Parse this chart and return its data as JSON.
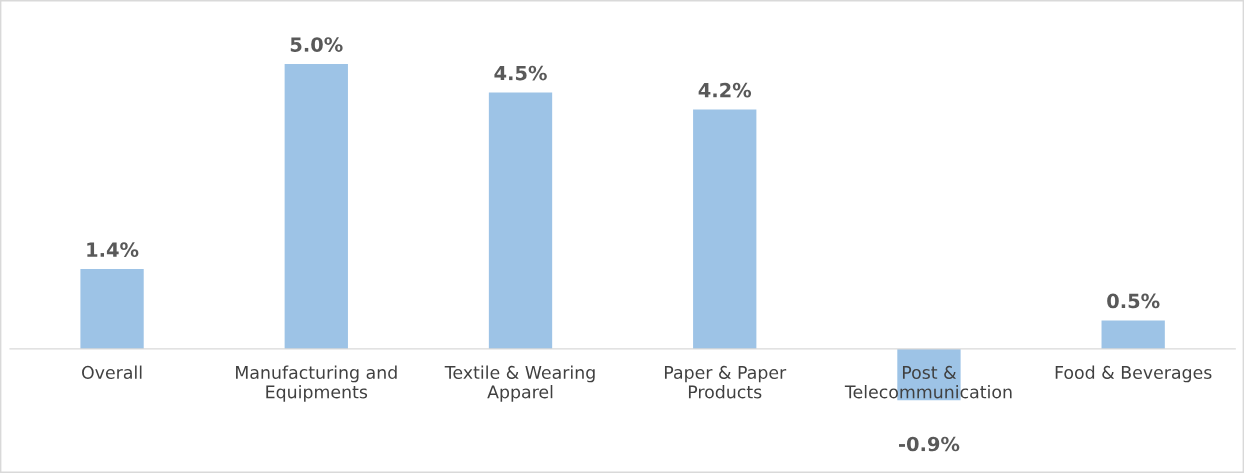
{
  "chart_data": {
    "type": "bar",
    "categories": [
      "Overall",
      "Manufacturing and\nEquipments",
      "Textile & Wearing\nApparel",
      "Paper & Paper\nProducts",
      "Post &\nTelecommunication",
      "Food & Beverages"
    ],
    "values": [
      1.4,
      5.0,
      4.5,
      4.2,
      -0.9,
      0.5
    ],
    "value_labels": [
      "1.4%",
      "5.0%",
      "4.5%",
      "4.2%",
      "-0.9%",
      "0.5%"
    ],
    "color": "#9dc3e6",
    "grid": false,
    "legend": false
  }
}
